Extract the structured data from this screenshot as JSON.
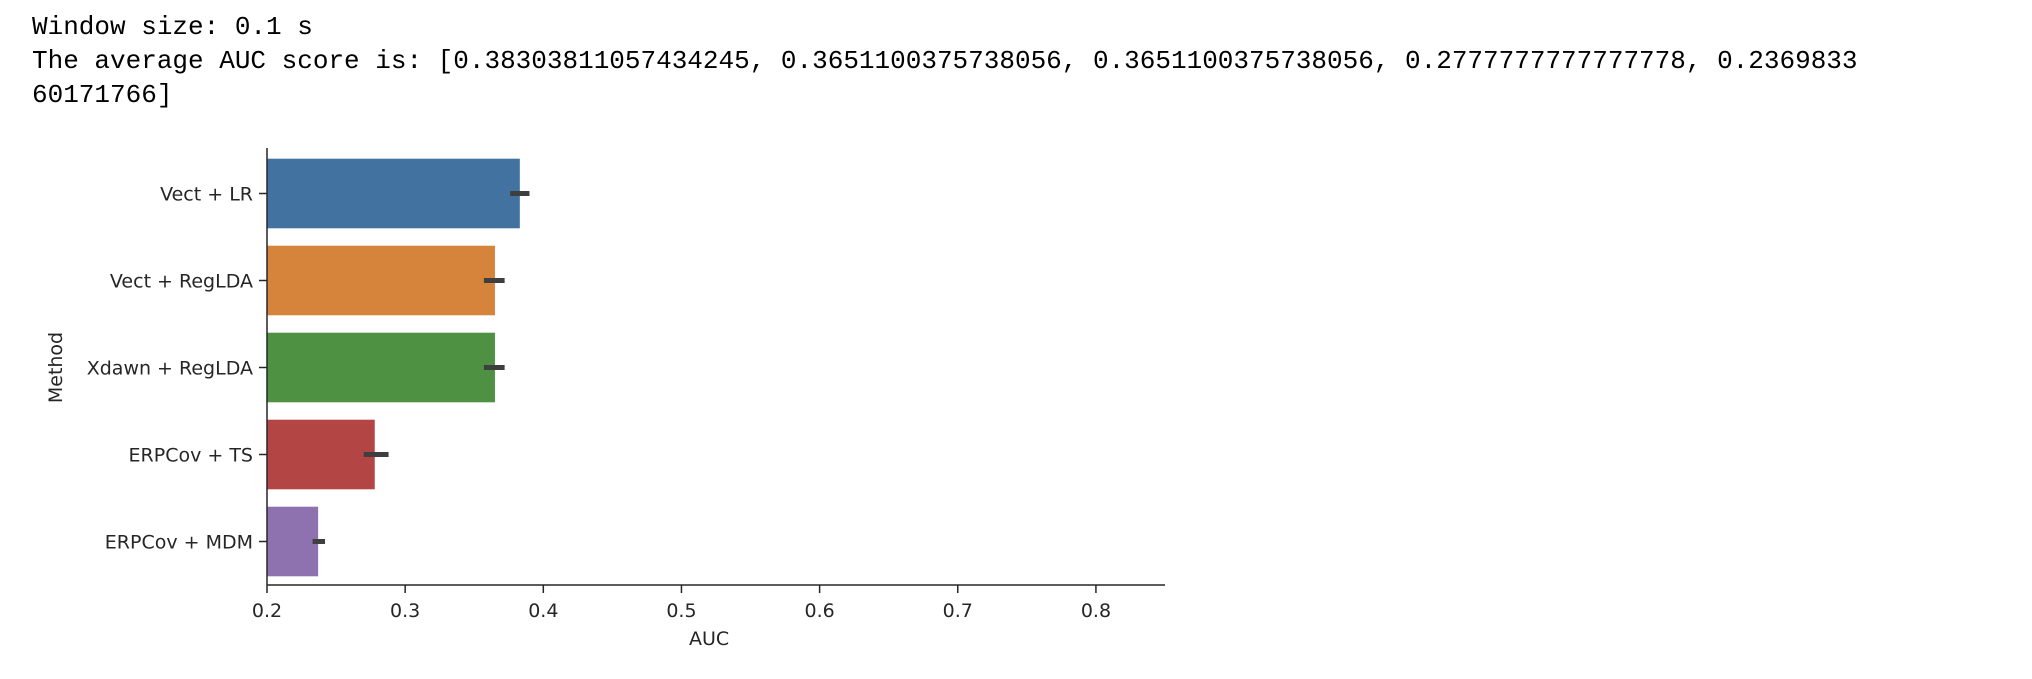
{
  "output": {
    "line1": "Window size: 0.1 s",
    "line2": "The average AUC score is: [0.38303811057434245, 0.3651100375738056, 0.3651100375738056, 0.2777777777777778, 0.2369833",
    "line3": "60171766]"
  },
  "chart_data": {
    "type": "bar",
    "orientation": "horizontal",
    "title": "",
    "xlabel": "AUC",
    "ylabel": "Method",
    "categories": [
      "Vect + LR",
      "Vect + RegLDA",
      "Xdawn + RegLDA",
      "ERPCov + TS",
      "ERPCov + MDM"
    ],
    "values": [
      0.383,
      0.365,
      0.365,
      0.278,
      0.237
    ],
    "error_low": [
      0.376,
      0.357,
      0.357,
      0.27,
      0.233
    ],
    "error_high": [
      0.39,
      0.372,
      0.372,
      0.288,
      0.242
    ],
    "colors": [
      "#4272a0",
      "#d6843c",
      "#4e9142",
      "#b44545",
      "#8e72b0"
    ],
    "error_color": "#3f3f3f",
    "xlim": [
      0.2,
      0.85
    ],
    "xticks": [
      0.2,
      0.3,
      0.4,
      0.5,
      0.6,
      0.7,
      0.8
    ],
    "xtick_labels": [
      "0.2",
      "0.3",
      "0.4",
      "0.5",
      "0.6",
      "0.7",
      "0.8"
    ],
    "grid": false,
    "legend": false
  }
}
